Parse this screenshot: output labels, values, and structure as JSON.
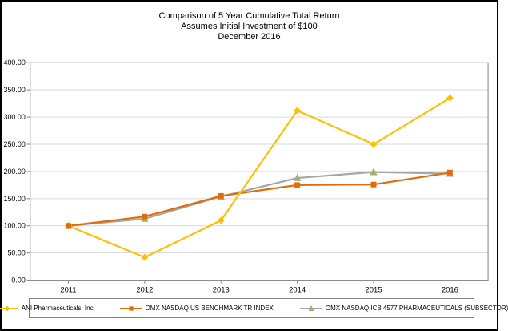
{
  "chart_data": {
    "type": "line",
    "title": "Comparison of 5 Year Cumulative Total Return",
    "subtitle": "Assumes Initial Investment of $100",
    "date_label": "December 2016",
    "categories": [
      "2011",
      "2012",
      "2013",
      "2014",
      "2015",
      "2016"
    ],
    "series": [
      {
        "name": "ANI Pharmaceuticals, Inc",
        "color": "#FFC000",
        "marker": "diamond",
        "marker_color": "#FFC000",
        "values": [
          100,
          42,
          110,
          312,
          250,
          335
        ]
      },
      {
        "name": "OMX NASDAQ US BENCHMARK TR INDEX",
        "color": "#E36C09",
        "marker": "square",
        "marker_color": "#E36C09",
        "values": [
          100,
          117,
          155,
          175,
          176,
          198
        ]
      },
      {
        "name": "OMX NASDAQ ICB 4577 PHARMACEUTICALS (SUBSECTOR)",
        "color": "#A5A5A5",
        "marker": "triangle",
        "marker_color": "#9BBB59",
        "values": [
          100,
          113,
          154,
          188,
          199,
          196
        ]
      }
    ],
    "ylim": [
      0,
      400
    ],
    "y_tick_step": 50,
    "y_tick_labels": [
      "400.00",
      "350.00",
      "300.00",
      "250.00",
      "200.00",
      "150.00",
      "100.00",
      "50.00",
      "0.00"
    ],
    "xlabel": "",
    "ylabel": "",
    "grid": true,
    "legend_position": "bottom"
  },
  "colors": {
    "background": "#FFFFFF",
    "outer_border": "#000000",
    "plot_border": "#808080",
    "gridline": "#D9D9D9",
    "text": "#000000"
  }
}
